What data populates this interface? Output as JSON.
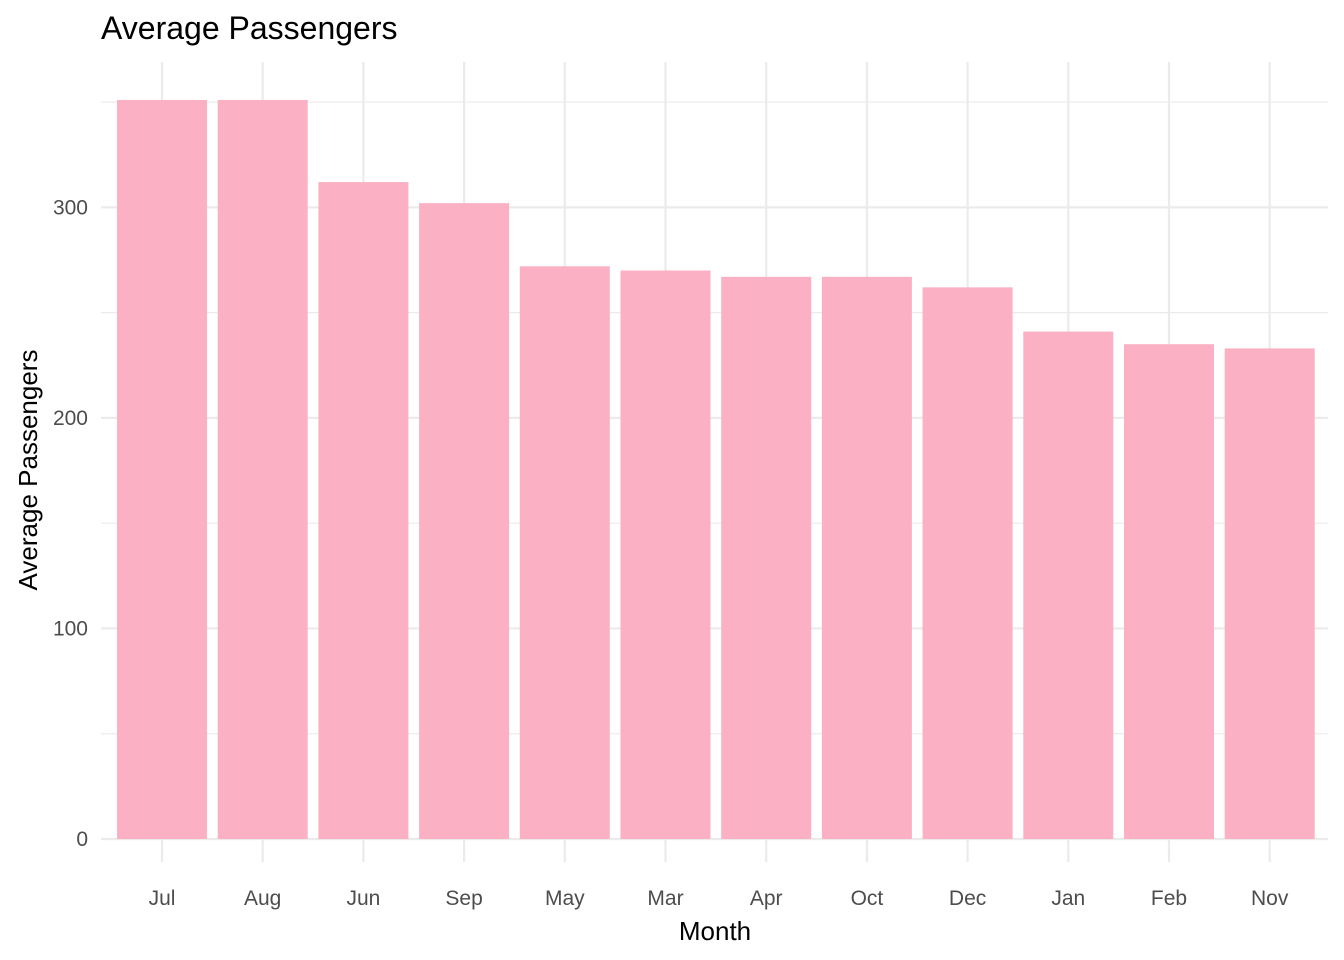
{
  "chart_data": {
    "type": "bar",
    "title": "Average Passengers",
    "xlabel": "Month",
    "ylabel": "Average Passengers",
    "categories": [
      "Jul",
      "Aug",
      "Jun",
      "Sep",
      "May",
      "Mar",
      "Apr",
      "Oct",
      "Dec",
      "Jan",
      "Feb",
      "Nov"
    ],
    "values": [
      351,
      351,
      312,
      302,
      272,
      270,
      267,
      267,
      262,
      241,
      235,
      233
    ],
    "ylim": [
      0,
      368
    ],
    "yticks": [
      0,
      100,
      200,
      300
    ],
    "grid": true,
    "bar_color": "#FBB0C3",
    "grid_color": "#EBEBEB"
  }
}
